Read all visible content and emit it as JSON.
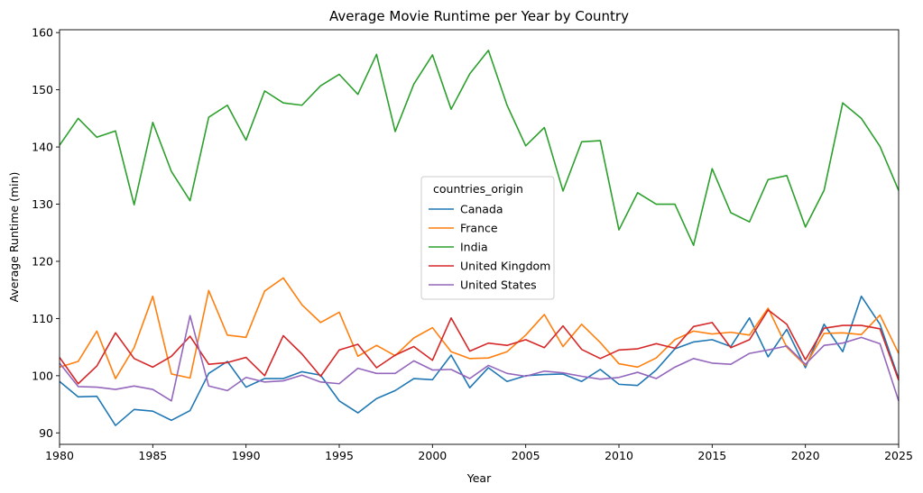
{
  "chart_data": {
    "type": "line",
    "title": "Average Movie Runtime per Year by Country",
    "xlabel": "Year",
    "ylabel": "Average Runtime (min)",
    "xlim": [
      1980,
      2025
    ],
    "ylim": [
      88,
      160.5
    ],
    "xticks": [
      1980,
      1985,
      1990,
      1995,
      2000,
      2005,
      2010,
      2015,
      2020,
      2025
    ],
    "yticks": [
      90,
      100,
      110,
      120,
      130,
      140,
      150,
      160
    ],
    "grid": false,
    "legend": {
      "title": "countries_origin",
      "placement": "center"
    },
    "x": [
      1980,
      1981,
      1982,
      1983,
      1984,
      1985,
      1986,
      1987,
      1988,
      1989,
      1990,
      1991,
      1992,
      1993,
      1994,
      1995,
      1996,
      1997,
      1998,
      1999,
      2000,
      2001,
      2002,
      2003,
      2004,
      2005,
      2006,
      2007,
      2008,
      2009,
      2010,
      2011,
      2012,
      2013,
      2014,
      2015,
      2016,
      2017,
      2018,
      2019,
      2020,
      2021,
      2022,
      2023,
      2024,
      2025
    ],
    "series": [
      {
        "name": "Canada",
        "color": "#1f77b4",
        "values": [
          99.0,
          96.3,
          96.4,
          91.3,
          94.1,
          93.8,
          92.2,
          93.9,
          100.4,
          102.5,
          98.0,
          99.5,
          99.5,
          100.7,
          100.1,
          95.6,
          93.5,
          96.0,
          97.4,
          99.5,
          99.3,
          103.6,
          97.9,
          101.4,
          99.0,
          100.0,
          100.2,
          100.3,
          99.0,
          101.1,
          98.5,
          98.3,
          101.0,
          104.7,
          105.9,
          106.3,
          105.1,
          110.1,
          103.3,
          108.1,
          101.4,
          109.0,
          104.2,
          113.9,
          109.0,
          99.5
        ]
      },
      {
        "name": "France",
        "color": "#ff7f0e",
        "values": [
          101.5,
          102.5,
          107.8,
          99.5,
          104.9,
          113.9,
          100.3,
          99.6,
          114.9,
          107.1,
          106.7,
          114.8,
          117.1,
          112.4,
          109.3,
          111.1,
          103.4,
          105.3,
          103.5,
          106.6,
          108.4,
          104.2,
          103.0,
          103.1,
          104.2,
          107.1,
          110.7,
          105.1,
          109.0,
          105.8,
          102.1,
          101.5,
          103.1,
          106.3,
          107.8,
          107.3,
          107.6,
          107.1,
          111.8,
          105.0,
          101.8,
          107.4,
          107.5,
          107.2,
          110.6,
          103.9
        ]
      },
      {
        "name": "India",
        "color": "#2ca02c",
        "values": [
          140.3,
          145.0,
          141.7,
          142.8,
          129.9,
          144.3,
          135.7,
          130.6,
          145.2,
          147.3,
          141.2,
          149.8,
          147.7,
          147.3,
          150.7,
          152.7,
          149.2,
          156.2,
          142.7,
          151.0,
          156.1,
          146.6,
          152.8,
          156.9,
          147.3,
          140.2,
          143.4,
          132.3,
          140.9,
          141.1,
          125.5,
          132.0,
          130.0,
          130.0,
          122.8,
          136.2,
          128.5,
          126.9,
          134.3,
          135.0,
          126.0,
          132.4,
          147.7,
          145.0,
          140.1,
          132.4
        ]
      },
      {
        "name": "United Kingdom",
        "color": "#d62728",
        "values": [
          103.2,
          98.6,
          101.7,
          107.5,
          103.0,
          101.5,
          103.4,
          106.9,
          102.0,
          102.3,
          103.2,
          100.0,
          107.0,
          103.8,
          99.9,
          104.5,
          105.5,
          101.4,
          103.6,
          105.1,
          102.7,
          110.1,
          104.3,
          105.7,
          105.3,
          106.3,
          104.9,
          108.7,
          104.6,
          103.0,
          104.5,
          104.7,
          105.6,
          104.8,
          108.6,
          109.3,
          104.9,
          106.3,
          111.5,
          109.0,
          102.8,
          108.3,
          108.8,
          108.8,
          108.2,
          99.2
        ]
      },
      {
        "name": "United States",
        "color": "#9467bd",
        "values": [
          102.2,
          98.1,
          98.0,
          97.6,
          98.2,
          97.6,
          95.6,
          110.5,
          98.2,
          97.4,
          99.7,
          98.9,
          99.1,
          100.1,
          98.9,
          98.6,
          101.3,
          100.4,
          100.4,
          102.6,
          101.0,
          101.1,
          99.5,
          101.8,
          100.4,
          99.9,
          100.8,
          100.5,
          99.9,
          99.4,
          99.7,
          100.6,
          99.5,
          101.5,
          103.0,
          102.2,
          102.0,
          103.9,
          104.5,
          105.2,
          102.0,
          105.3,
          105.7,
          106.7,
          105.6,
          95.6
        ]
      }
    ]
  }
}
